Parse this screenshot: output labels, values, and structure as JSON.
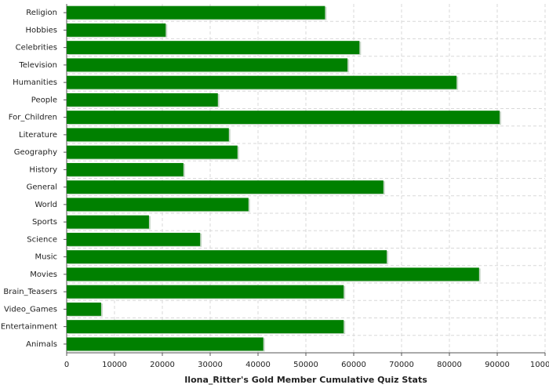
{
  "chart_data": {
    "type": "barh",
    "title": "Ilona_Ritter's Gold Member Cumulative Quiz Stats",
    "categories": [
      "Religion",
      "Hobbies",
      "Celebrities",
      "Television",
      "Humanities",
      "People",
      "For_Children",
      "Literature",
      "Geography",
      "History",
      "General",
      "World",
      "Sports",
      "Science",
      "Music",
      "Movies",
      "Brain_Teasers",
      "Video_Games",
      "Entertainment",
      "Animals"
    ],
    "values": [
      54000,
      20700,
      61200,
      58700,
      81500,
      31600,
      90500,
      33900,
      35700,
      24400,
      66200,
      38000,
      17200,
      27900,
      66900,
      86200,
      57900,
      7200,
      57900,
      41100
    ],
    "color": "#008000",
    "xlim": [
      0,
      100000
    ],
    "xticks": [
      0,
      10000,
      20000,
      30000,
      40000,
      50000,
      60000,
      70000,
      80000,
      90000,
      100000
    ],
    "grid": true
  }
}
